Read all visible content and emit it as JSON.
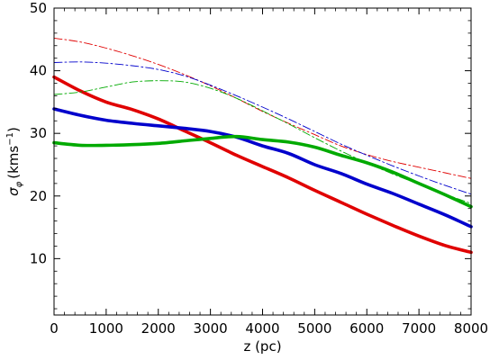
{
  "chart_data": {
    "type": "line",
    "xlabel": "z (pc)",
    "ylabel": {
      "symbol": "σ",
      "subscript": "φ",
      "unit": "(kms",
      "exponent": "−1",
      "close": ")"
    },
    "xlim": [
      0,
      8000
    ],
    "ylim": [
      1,
      50
    ],
    "x_ticks": [
      0,
      1000,
      2000,
      3000,
      4000,
      5000,
      6000,
      7000,
      8000
    ],
    "y_ticks": [
      10,
      20,
      30,
      40,
      50
    ],
    "grid": false,
    "legend": "none",
    "series": [
      {
        "style": "thick",
        "color": "#e00000",
        "x": [
          0,
          500,
          1000,
          1500,
          2000,
          2500,
          3000,
          3500,
          4000,
          4500,
          5000,
          5500,
          6000,
          6500,
          7000,
          7500,
          8000
        ],
        "y": [
          39.0,
          36.8,
          35.0,
          33.8,
          32.3,
          30.4,
          28.5,
          26.5,
          24.7,
          22.9,
          20.9,
          19.0,
          17.1,
          15.3,
          13.6,
          12.1,
          11.0
        ]
      },
      {
        "style": "thick",
        "color": "#0000cc",
        "x": [
          0,
          500,
          1000,
          1500,
          2000,
          2500,
          3000,
          3500,
          4000,
          4500,
          5000,
          5500,
          6000,
          6500,
          7000,
          7500,
          8000
        ],
        "y": [
          33.9,
          32.9,
          32.1,
          31.6,
          31.2,
          30.8,
          30.3,
          29.4,
          28.0,
          26.8,
          25.0,
          23.6,
          21.9,
          20.4,
          18.7,
          17.0,
          15.1
        ]
      },
      {
        "style": "thick",
        "color": "#00aa00",
        "x": [
          0,
          500,
          1000,
          1500,
          2000,
          2500,
          3000,
          3500,
          4000,
          4500,
          5000,
          5500,
          6000,
          6500,
          7000,
          7500,
          8000
        ],
        "y": [
          28.5,
          28.1,
          28.1,
          28.2,
          28.4,
          28.8,
          29.2,
          29.5,
          29.0,
          28.6,
          27.8,
          26.5,
          25.3,
          23.8,
          22.0,
          20.2,
          18.3
        ]
      },
      {
        "style": "thin-dashdot",
        "color": "#e00000",
        "x": [
          0,
          500,
          1000,
          1500,
          2000,
          2500,
          3000,
          3500,
          4000,
          4500,
          5000,
          5500,
          6000,
          6500,
          7000,
          7500,
          8000
        ],
        "y": [
          45.2,
          44.6,
          43.6,
          42.4,
          41.0,
          39.4,
          37.6,
          35.6,
          33.5,
          31.6,
          29.8,
          28.0,
          26.6,
          25.5,
          24.6,
          23.7,
          22.8
        ]
      },
      {
        "style": "thin-dashdot",
        "color": "#0000cc",
        "x": [
          0,
          500,
          1000,
          1500,
          2000,
          2500,
          3000,
          3500,
          4000,
          4500,
          5000,
          5500,
          6000,
          6500,
          7000,
          7500,
          8000
        ],
        "y": [
          41.3,
          41.4,
          41.2,
          40.8,
          40.2,
          39.2,
          37.7,
          36.0,
          34.2,
          32.3,
          30.3,
          28.3,
          26.5,
          24.8,
          23.2,
          21.7,
          20.3
        ]
      },
      {
        "style": "thin-dashdot",
        "color": "#00aa00",
        "x": [
          0,
          500,
          1000,
          1500,
          2000,
          2500,
          3000,
          3500,
          4000,
          4500,
          5000,
          5500,
          6000,
          6500,
          7000,
          7500,
          8000
        ],
        "y": [
          36.2,
          36.6,
          37.4,
          38.2,
          38.4,
          38.2,
          37.2,
          35.6,
          33.6,
          31.5,
          29.3,
          27.2,
          25.3,
          23.5,
          21.9,
          20.3,
          18.8
        ]
      }
    ]
  }
}
